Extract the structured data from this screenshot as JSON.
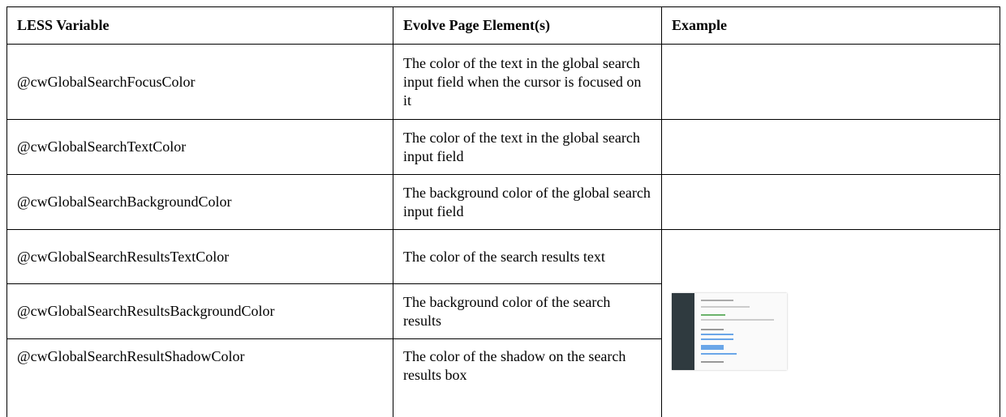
{
  "table": {
    "header": [
      "LESS Variable",
      "Evolve Page Element(s)",
      "Example"
    ],
    "rows": [
      [
        "@cwGlobalSearchFocusColor",
        "The color of the text in the global search input field when the cursor is focused on it"
      ],
      [
        "@cwGlobalSearchTextColor",
        "The color of the text in the global search input field"
      ],
      [
        "@cwGlobalSearchBackgroundColor",
        "The background color of the global search input field"
      ],
      [
        "@cwGlobalSearchResultsTextColor",
        "The color of the search results text"
      ],
      [
        "@cwGlobalSearchResultsBackgroundColor",
        "The background color of the search results"
      ],
      [
        "@cwGlobalSearchResultShadowColor",
        "The color of the shadow on the search results box"
      ]
    ]
  }
}
